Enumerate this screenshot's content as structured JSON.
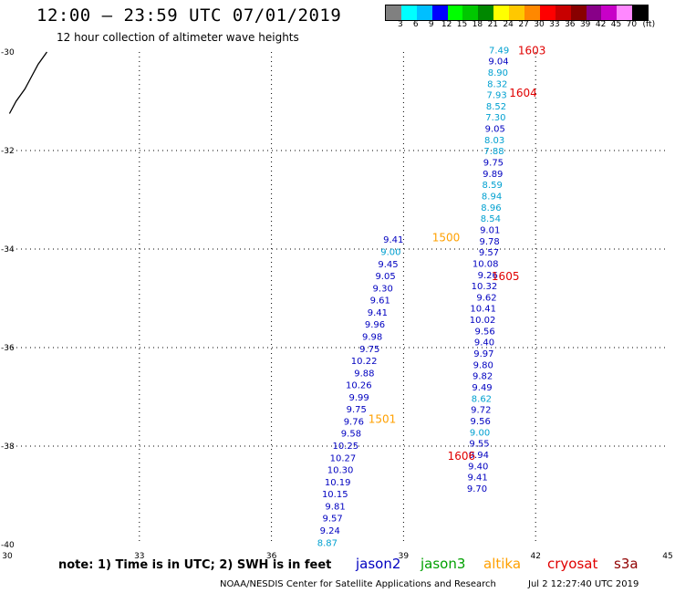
{
  "header": {
    "title": "12:00 – 23:59 UTC 07/01/2019",
    "subtitle": "12 hour collection of altimeter wave heights"
  },
  "colorbar": {
    "colors": [
      "#808080",
      "#00ffff",
      "#00bfff",
      "#0000ff",
      "#00ff00",
      "#00c800",
      "#008800",
      "#ffff00",
      "#ffc800",
      "#ff8800",
      "#ff0000",
      "#c80000",
      "#880000",
      "#880088",
      "#c800c8",
      "#ff88ff",
      "#000000"
    ],
    "labels": [
      "3",
      "6",
      "9",
      "12",
      "15",
      "18",
      "21",
      "24",
      "27",
      "30",
      "33",
      "36",
      "39",
      "42",
      "45",
      "70"
    ],
    "unit": "(ft)"
  },
  "axes": {
    "x_ticks": [
      "30",
      "33",
      "36",
      "39",
      "42",
      "45"
    ],
    "y_ticks": [
      "-30",
      "-32",
      "-34",
      "-36",
      "-38",
      "-40"
    ],
    "x_range": [
      30,
      45
    ],
    "y_range": [
      -40,
      -30
    ]
  },
  "colors": {
    "jason2": "#0000c0",
    "jason3": "#00a000",
    "altika": "#ffa000",
    "cryosat": "#e00000",
    "s3a": "#900000",
    "light": "#00a0d0",
    "coast": "#000000",
    "grid": "#000000"
  },
  "chart_data": {
    "type": "map",
    "coastline": [
      [
        30.05,
        -31.25
      ],
      [
        30.2,
        -31.0
      ],
      [
        30.4,
        -30.75
      ],
      [
        30.55,
        -30.5
      ],
      [
        30.7,
        -30.25
      ],
      [
        30.9,
        -30.0
      ]
    ],
    "tracks": [
      {
        "name": "track-east",
        "x_start": 41.4,
        "x_end": 40.9,
        "y_start": -29.95,
        "y_end": -38.85,
        "values": [
          "7.49",
          "9.04",
          "8.90",
          "8.32",
          "7.93",
          "8.52",
          "7.30",
          "9.05",
          "8.03",
          "7.88",
          "9.75",
          "9.89",
          "8.59",
          "8.94",
          "8.96",
          "8.54",
          "9.01",
          "9.78",
          "9.57",
          "10.08",
          "9.26",
          "10.32",
          "9.62",
          "10.41",
          "10.02",
          "9.56",
          "9.40",
          "9.97",
          "9.80",
          "9.82",
          "9.49",
          "8.62",
          "9.72",
          "9.56",
          "9.00",
          "9.55",
          "9.94",
          "9.40",
          "9.41",
          "9.70"
        ],
        "light": [
          0,
          2,
          3,
          4,
          5,
          6,
          8,
          9,
          12,
          13,
          14,
          15,
          31,
          34
        ]
      },
      {
        "name": "track-west",
        "x_start": 39.0,
        "x_end": 37.5,
        "y_start": -33.8,
        "y_end": -39.95,
        "values": [
          "9.41",
          "9.00",
          "9.45",
          "9.05",
          "9.30",
          "9.61",
          "9.41",
          "9.96",
          "9.98",
          "9.75",
          "10.22",
          "9.88",
          "10.26",
          "9.99",
          "9.75",
          "9.76",
          "9.58",
          "10.25",
          "10.27",
          "10.30",
          "10.19",
          "10.15",
          "9.81",
          "9.57",
          "9.24",
          "8.87"
        ],
        "light": [
          1,
          25
        ]
      }
    ],
    "pass_labels": [
      {
        "text": "1603",
        "x": 41.6,
        "y": -29.97,
        "sat": "cryosat"
      },
      {
        "text": "1604",
        "x": 41.4,
        "y": -30.83,
        "sat": "cryosat"
      },
      {
        "text": "1500",
        "x": 39.65,
        "y": -33.77,
        "sat": "altika"
      },
      {
        "text": "1605",
        "x": 41.0,
        "y": -34.56,
        "sat": "cryosat"
      },
      {
        "text": "1501",
        "x": 38.2,
        "y": -37.45,
        "sat": "altika"
      },
      {
        "text": "1606",
        "x": 40.0,
        "y": -38.2,
        "sat": "cryosat"
      }
    ]
  },
  "legend": {
    "note": "note:  1) Time is in UTC;  2) SWH is in feet",
    "satellites": [
      {
        "name": "jason2",
        "color": "#0000c0"
      },
      {
        "name": "jason3",
        "color": "#00a000"
      },
      {
        "name": "altika",
        "color": "#ffa000"
      },
      {
        "name": "cryosat",
        "color": "#e00000"
      },
      {
        "name": "s3a",
        "color": "#900000"
      }
    ]
  },
  "footer": {
    "credit": "NOAA/NESDIS Center for Satellite Applications and Research",
    "timestamp": "Jul  2 12:27:40 UTC 2019"
  }
}
